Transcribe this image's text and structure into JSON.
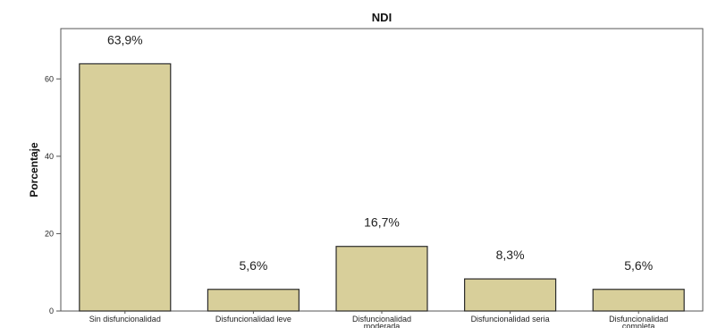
{
  "chart_data": {
    "type": "bar",
    "title": "NDI",
    "ylabel": "Porcentaje",
    "xlabel": "",
    "categories": [
      "Sin disfuncionalidad",
      "Disfuncionalidad leve",
      "Disfuncionalidad moderada",
      "Disfuncionalidad seria",
      "Disfuncionalidad completa"
    ],
    "values": [
      63.9,
      5.6,
      16.7,
      8.3,
      5.6
    ],
    "data_labels": [
      "63,9%",
      "5,6%",
      "16,7%",
      "8,3%",
      "5,6%"
    ],
    "yticks": [
      0,
      20,
      40,
      60
    ],
    "ylim": [
      0,
      73
    ],
    "grid": false,
    "legend": "none",
    "colors": {
      "bar_fill": "#d8cf9a",
      "bar_stroke": "#2b2b2b",
      "plot_border": "#555555"
    }
  }
}
